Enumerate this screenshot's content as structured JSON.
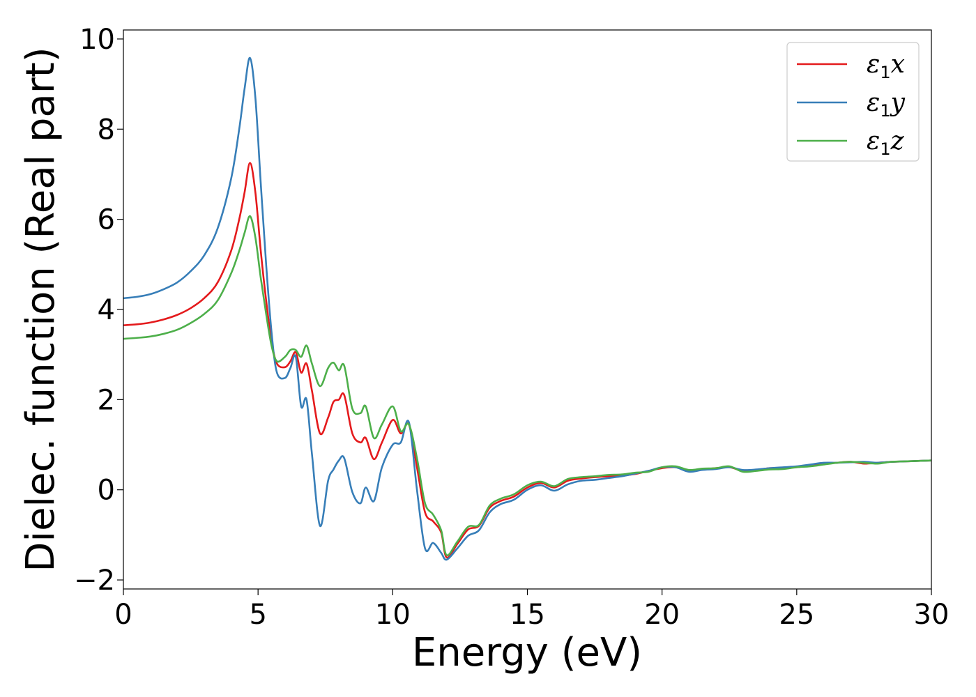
{
  "chart_data": {
    "type": "line",
    "xlabel": "Energy (eV)",
    "ylabel": "Dielec. function (Real part)",
    "xlim": [
      0,
      30
    ],
    "ylim": [
      -2.2,
      10.2
    ],
    "xticks": [
      0,
      5,
      10,
      15,
      20,
      25,
      30
    ],
    "xtick_labels": [
      "0",
      "5",
      "10",
      "15",
      "20",
      "25",
      "30"
    ],
    "yticks": [
      -2,
      0,
      2,
      4,
      6,
      8,
      10
    ],
    "ytick_labels": [
      "−2",
      "0",
      "2",
      "4",
      "6",
      "8",
      "10"
    ],
    "grid": false,
    "legend_position": "top-right",
    "x": [
      0,
      0.5,
      1,
      1.5,
      2,
      2.5,
      3,
      3.5,
      4,
      4.3,
      4.5,
      4.7,
      4.9,
      5.1,
      5.3,
      5.5,
      5.7,
      6.0,
      6.2,
      6.4,
      6.6,
      6.8,
      7.0,
      7.3,
      7.6,
      7.8,
      8.0,
      8.2,
      8.5,
      8.8,
      9.0,
      9.3,
      9.6,
      10.0,
      10.3,
      10.6,
      10.9,
      11.2,
      11.5,
      11.8,
      12.0,
      12.4,
      12.8,
      13.2,
      13.6,
      14.0,
      14.5,
      15.0,
      15.5,
      16.0,
      16.5,
      17.0,
      17.5,
      18.0,
      18.5,
      19.0,
      19.5,
      20.0,
      20.5,
      21.0,
      21.5,
      22.0,
      22.5,
      23.0,
      23.5,
      24.0,
      24.5,
      25.0,
      25.5,
      26.0,
      26.5,
      27.0,
      27.5,
      28.0,
      28.5,
      29.0,
      29.5,
      30.0
    ],
    "series": [
      {
        "name": "ε1x",
        "color": "#e41a1c",
        "values": [
          3.65,
          3.67,
          3.71,
          3.78,
          3.88,
          4.03,
          4.25,
          4.6,
          5.3,
          6.0,
          6.6,
          7.25,
          6.6,
          5.3,
          4.2,
          3.3,
          2.8,
          2.72,
          2.85,
          3.05,
          2.6,
          2.8,
          2.2,
          1.25,
          1.6,
          1.95,
          2.0,
          2.1,
          1.25,
          1.05,
          1.15,
          0.68,
          1.05,
          1.55,
          1.25,
          1.45,
          0.5,
          -0.5,
          -0.7,
          -0.95,
          -1.5,
          -1.2,
          -0.88,
          -0.8,
          -0.4,
          -0.25,
          -0.15,
          0.05,
          0.15,
          0.05,
          0.2,
          0.25,
          0.28,
          0.3,
          0.32,
          0.35,
          0.42,
          0.48,
          0.5,
          0.42,
          0.45,
          0.48,
          0.5,
          0.42,
          0.44,
          0.48,
          0.48,
          0.5,
          0.55,
          0.58,
          0.6,
          0.62,
          0.58,
          0.6,
          0.62,
          0.63,
          0.64,
          0.65
        ]
      },
      {
        "name": "ε1y",
        "color": "#377eb8",
        "values": [
          4.25,
          4.28,
          4.34,
          4.45,
          4.6,
          4.85,
          5.2,
          5.8,
          6.9,
          8.0,
          8.9,
          9.58,
          8.7,
          6.8,
          5.0,
          3.5,
          2.6,
          2.48,
          2.7,
          2.95,
          1.85,
          2.0,
          0.8,
          -0.8,
          0.2,
          0.45,
          0.65,
          0.7,
          -0.05,
          -0.3,
          0.05,
          -0.25,
          0.5,
          1.0,
          1.05,
          1.5,
          0.0,
          -1.3,
          -1.18,
          -1.4,
          -1.55,
          -1.3,
          -1.02,
          -0.9,
          -0.5,
          -0.32,
          -0.22,
          0.0,
          0.1,
          -0.02,
          0.12,
          0.2,
          0.22,
          0.26,
          0.3,
          0.36,
          0.42,
          0.5,
          0.5,
          0.4,
          0.44,
          0.46,
          0.5,
          0.44,
          0.45,
          0.48,
          0.5,
          0.52,
          0.56,
          0.6,
          0.6,
          0.61,
          0.62,
          0.6,
          0.62,
          0.63,
          0.64,
          0.65
        ]
      },
      {
        "name": "ε1z",
        "color": "#4daf4a",
        "values": [
          3.35,
          3.37,
          3.4,
          3.46,
          3.55,
          3.7,
          3.9,
          4.2,
          4.8,
          5.3,
          5.7,
          6.07,
          5.6,
          4.7,
          3.9,
          3.2,
          2.85,
          2.95,
          3.1,
          3.1,
          2.95,
          3.2,
          2.8,
          2.3,
          2.7,
          2.82,
          2.65,
          2.75,
          1.8,
          1.7,
          1.85,
          1.15,
          1.45,
          1.85,
          1.3,
          1.45,
          0.7,
          -0.3,
          -0.55,
          -0.9,
          -1.45,
          -1.15,
          -0.82,
          -0.78,
          -0.35,
          -0.2,
          -0.1,
          0.1,
          0.18,
          0.08,
          0.24,
          0.28,
          0.3,
          0.33,
          0.34,
          0.38,
          0.4,
          0.5,
          0.52,
          0.44,
          0.47,
          0.48,
          0.52,
          0.4,
          0.42,
          0.45,
          0.46,
          0.5,
          0.52,
          0.56,
          0.6,
          0.62,
          0.6,
          0.58,
          0.62,
          0.63,
          0.64,
          0.65
        ]
      }
    ]
  }
}
